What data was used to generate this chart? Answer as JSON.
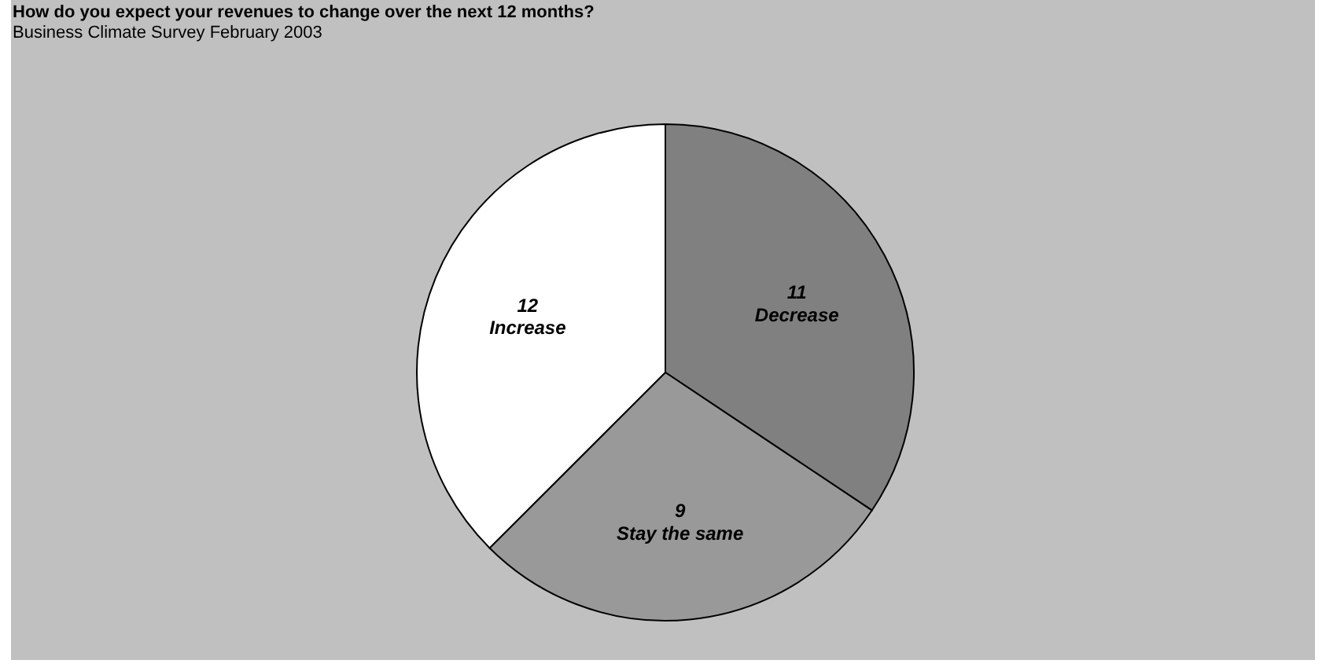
{
  "chart_data": {
    "type": "pie",
    "title": "How do you expect your revenues to change over the next 12 months?",
    "subtitle": "Business Climate Survey February 2003",
    "categories": [
      "Decrease",
      "Stay the same",
      "Increase"
    ],
    "values": [
      11,
      9,
      12
    ],
    "colors": [
      "#808080",
      "#999999",
      "#ffffff"
    ],
    "data_labels": true
  }
}
